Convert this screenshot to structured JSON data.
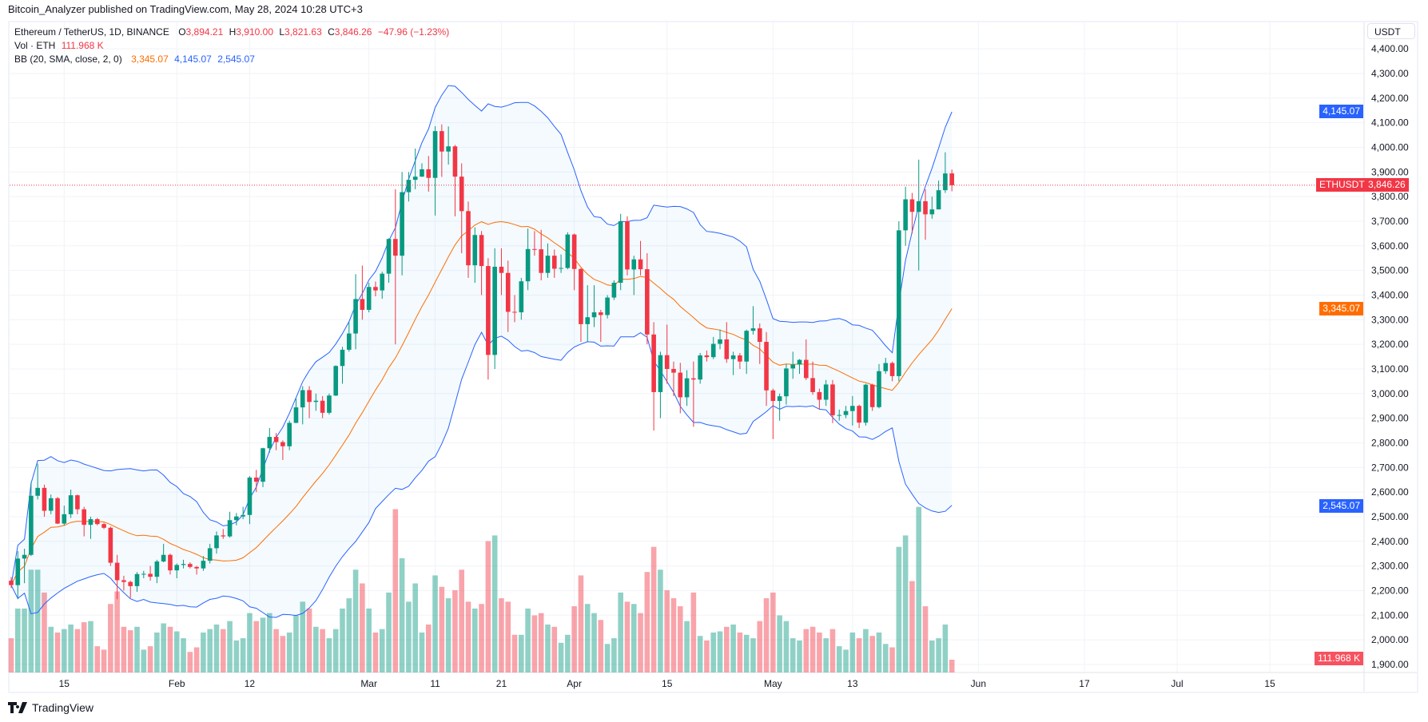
{
  "publish_note": "Bitcoin_Analyzer published on TradingView.com, May 28, 2024 10:28 UTC+3",
  "legend": {
    "symbol": "Ethereum / TetherUS, 1D, BINANCE",
    "o_label": "O",
    "o": "3,894.21",
    "h_label": "H",
    "h": "3,910.00",
    "l_label": "L",
    "l": "3,821.63",
    "c_label": "C",
    "c": "3,846.26",
    "change": "−47.96 (−1.23%)",
    "vol_label": "Vol · ETH",
    "vol": "111.968 K",
    "bb_label": "BB (20, SMA, close, 2, 0)",
    "bb_basis": "3,345.07",
    "bb_upper": "4,145.07",
    "bb_lower": "2,545.07"
  },
  "currency_button": "USDT",
  "badges": {
    "symbol": "ETHUSDT",
    "last": "3,846.26",
    "last_value": 3846.26,
    "upper": "4,145.07",
    "upper_value": 4145.07,
    "basis": "3,345.07",
    "basis_value": 3345.07,
    "lower": "2,545.07",
    "lower_value": 2545.07,
    "volume": "111.968 K"
  },
  "footer_brand": "TradingView",
  "colors": {
    "up": "#089981",
    "down": "#f23645",
    "bb_basis": "#ff6d00",
    "bb_band": "#2962ff",
    "grid": "#f0f3fa"
  },
  "chart_data": {
    "type": "candlestick",
    "start_date": "2024-01-07",
    "price_axis": {
      "min": 1900,
      "max": 4400,
      "ticks": [
        "4,400.00",
        "4,300.00",
        "4,200.00",
        "4,100.00",
        "4,000.00",
        "3,900.00",
        "3,800.00",
        "3,700.00",
        "3,600.00",
        "3,500.00",
        "3,400.00",
        "3,300.00",
        "3,200.00",
        "3,100.00",
        "3,000.00",
        "2,900.00",
        "2,800.00",
        "2,700.00",
        "2,600.00",
        "2,500.00",
        "2,400.00",
        "2,300.00",
        "2,200.00",
        "2,100.00",
        "2,000.00",
        "1,900.00"
      ]
    },
    "time_axis": [
      {
        "label": "15",
        "date": "2024-01-15"
      },
      {
        "label": "Feb",
        "date": "2024-02-01"
      },
      {
        "label": "12",
        "date": "2024-02-12"
      },
      {
        "label": "Mar",
        "date": "2024-03-01"
      },
      {
        "label": "11",
        "date": "2024-03-11"
      },
      {
        "label": "21",
        "date": "2024-03-21"
      },
      {
        "label": "Apr",
        "date": "2024-04-01"
      },
      {
        "label": "15",
        "date": "2024-04-15"
      },
      {
        "label": "May",
        "date": "2024-05-01"
      },
      {
        "label": "13",
        "date": "2024-05-13"
      },
      {
        "label": "Jun",
        "date": "2024-06-01"
      },
      {
        "label": "17",
        "date": "2024-06-17"
      },
      {
        "label": "Jul",
        "date": "2024-07-01"
      },
      {
        "label": "15",
        "date": "2024-07-15"
      }
    ],
    "bollinger": {
      "length": 20,
      "mult": 2
    },
    "ohlcv_fields": [
      "open",
      "high",
      "low",
      "close",
      "volume_k"
    ],
    "ohlcv": [
      [
        2240,
        2255,
        2210,
        2222,
        300
      ],
      [
        2222,
        2360,
        2165,
        2330,
        560
      ],
      [
        2330,
        2370,
        2230,
        2345,
        560
      ],
      [
        2345,
        2640,
        2340,
        2585,
        900
      ],
      [
        2585,
        2715,
        2570,
        2617,
        900
      ],
      [
        2617,
        2630,
        2500,
        2524,
        700
      ],
      [
        2524,
        2590,
        2510,
        2575,
        400
      ],
      [
        2575,
        2580,
        2470,
        2472,
        350
      ],
      [
        2472,
        2545,
        2465,
        2510,
        380
      ],
      [
        2510,
        2610,
        2495,
        2587,
        420
      ],
      [
        2587,
        2590,
        2510,
        2530,
        380
      ],
      [
        2530,
        2540,
        2420,
        2467,
        440
      ],
      [
        2467,
        2500,
        2410,
        2490,
        450
      ],
      [
        2490,
        2495,
        2465,
        2470,
        230
      ],
      [
        2470,
        2475,
        2450,
        2455,
        200
      ],
      [
        2455,
        2460,
        2300,
        2313,
        600
      ],
      [
        2313,
        2345,
        2165,
        2242,
        710
      ],
      [
        2242,
        2260,
        2200,
        2235,
        400
      ],
      [
        2235,
        2240,
        2170,
        2218,
        370
      ],
      [
        2218,
        2275,
        2195,
        2267,
        400
      ],
      [
        2267,
        2280,
        2250,
        2268,
        200
      ],
      [
        2268,
        2300,
        2240,
        2256,
        230
      ],
      [
        2256,
        2325,
        2230,
        2318,
        350
      ],
      [
        2318,
        2390,
        2315,
        2345,
        430
      ],
      [
        2345,
        2350,
        2265,
        2282,
        400
      ],
      [
        2282,
        2310,
        2250,
        2304,
        360
      ],
      [
        2304,
        2325,
        2290,
        2308,
        300
      ],
      [
        2308,
        2315,
        2290,
        2296,
        180
      ],
      [
        2296,
        2300,
        2265,
        2290,
        220
      ],
      [
        2290,
        2340,
        2280,
        2321,
        350
      ],
      [
        2321,
        2390,
        2310,
        2372,
        380
      ],
      [
        2372,
        2440,
        2350,
        2424,
        420
      ],
      [
        2424,
        2450,
        2410,
        2420,
        380
      ],
      [
        2420,
        2520,
        2415,
        2486,
        450
      ],
      [
        2486,
        2515,
        2465,
        2501,
        280
      ],
      [
        2501,
        2540,
        2490,
        2507,
        300
      ],
      [
        2507,
        2665,
        2470,
        2659,
        520
      ],
      [
        2659,
        2690,
        2600,
        2642,
        450
      ],
      [
        2642,
        2780,
        2620,
        2778,
        480
      ],
      [
        2778,
        2860,
        2760,
        2824,
        520
      ],
      [
        2824,
        2840,
        2770,
        2803,
        380
      ],
      [
        2803,
        2810,
        2730,
        2786,
        320
      ],
      [
        2786,
        2890,
        2770,
        2881,
        350
      ],
      [
        2881,
        2980,
        2880,
        2944,
        500
      ],
      [
        2944,
        3030,
        2875,
        3014,
        620
      ],
      [
        3014,
        3030,
        2900,
        2966,
        560
      ],
      [
        2966,
        3000,
        2930,
        2971,
        400
      ],
      [
        2971,
        2990,
        2900,
        2922,
        380
      ],
      [
        2922,
        3000,
        2915,
        2992,
        300
      ],
      [
        2992,
        3115,
        2990,
        3112,
        380
      ],
      [
        3112,
        3190,
        3040,
        3178,
        560
      ],
      [
        3178,
        3290,
        3170,
        3244,
        650
      ],
      [
        3244,
        3485,
        3180,
        3384,
        900
      ],
      [
        3384,
        3520,
        3300,
        3340,
        780
      ],
      [
        3340,
        3450,
        3330,
        3433,
        560
      ],
      [
        3433,
        3455,
        3395,
        3419,
        350
      ],
      [
        3419,
        3495,
        3385,
        3487,
        380
      ],
      [
        3487,
        3630,
        3450,
        3628,
        700
      ],
      [
        3628,
        3830,
        3200,
        3560,
        1430
      ],
      [
        3560,
        3900,
        3480,
        3818,
        1000
      ],
      [
        3818,
        3900,
        3780,
        3868,
        620
      ],
      [
        3868,
        3995,
        3830,
        3881,
        780
      ],
      [
        3881,
        3935,
        3880,
        3911,
        350
      ],
      [
        3911,
        3965,
        3820,
        3876,
        420
      ],
      [
        3876,
        4086,
        3723,
        4066,
        850
      ],
      [
        4066,
        4093,
        3880,
        3983,
        750
      ],
      [
        3983,
        4085,
        3930,
        4004,
        650
      ],
      [
        4004,
        4010,
        3720,
        3881,
        720
      ],
      [
        3881,
        3935,
        3570,
        3741,
        900
      ],
      [
        3741,
        3780,
        3470,
        3521,
        620
      ],
      [
        3521,
        3675,
        3450,
        3644,
        560
      ],
      [
        3644,
        3660,
        3400,
        3518,
        600
      ],
      [
        3518,
        3550,
        3057,
        3157,
        1150
      ],
      [
        3157,
        3590,
        3100,
        3515,
        1200
      ],
      [
        3515,
        3590,
        3400,
        3490,
        650
      ],
      [
        3490,
        3540,
        3250,
        3332,
        620
      ],
      [
        3332,
        3400,
        3290,
        3330,
        330
      ],
      [
        3330,
        3470,
        3300,
        3456,
        330
      ],
      [
        3456,
        3670,
        3420,
        3587,
        560
      ],
      [
        3587,
        3660,
        3560,
        3586,
        500
      ],
      [
        3586,
        3665,
        3460,
        3490,
        520
      ],
      [
        3490,
        3610,
        3470,
        3560,
        420
      ],
      [
        3560,
        3585,
        3470,
        3507,
        400
      ],
      [
        3507,
        3565,
        3490,
        3510,
        260
      ],
      [
        3510,
        3655,
        3505,
        3646,
        330
      ],
      [
        3646,
        3650,
        3420,
        3506,
        580
      ],
      [
        3506,
        3510,
        3210,
        3282,
        850
      ],
      [
        3282,
        3440,
        3210,
        3310,
        600
      ],
      [
        3310,
        3440,
        3270,
        3330,
        520
      ],
      [
        3330,
        3340,
        3210,
        3319,
        460
      ],
      [
        3319,
        3400,
        3305,
        3390,
        250
      ],
      [
        3390,
        3460,
        3380,
        3450,
        300
      ],
      [
        3450,
        3730,
        3420,
        3700,
        700
      ],
      [
        3700,
        3720,
        3480,
        3504,
        620
      ],
      [
        3504,
        3560,
        3400,
        3545,
        600
      ],
      [
        3545,
        3620,
        3480,
        3505,
        520
      ],
      [
        3505,
        3570,
        3200,
        3240,
        880
      ],
      [
        3240,
        3290,
        2850,
        3006,
        1100
      ],
      [
        3006,
        3170,
        2900,
        3156,
        900
      ],
      [
        3156,
        3280,
        3040,
        3100,
        720
      ],
      [
        3100,
        3130,
        2990,
        3085,
        650
      ],
      [
        3085,
        3125,
        2920,
        2985,
        580
      ],
      [
        2985,
        3095,
        2950,
        3062,
        450
      ],
      [
        3062,
        3130,
        2865,
        3057,
        700
      ],
      [
        3057,
        3165,
        3040,
        3155,
        320
      ],
      [
        3155,
        3175,
        3130,
        3148,
        280
      ],
      [
        3148,
        3230,
        3140,
        3202,
        350
      ],
      [
        3202,
        3260,
        3180,
        3220,
        360
      ],
      [
        3220,
        3290,
        3125,
        3140,
        400
      ],
      [
        3140,
        3170,
        3075,
        3155,
        420
      ],
      [
        3155,
        3165,
        3100,
        3130,
        350
      ],
      [
        3130,
        3260,
        3080,
        3255,
        330
      ],
      [
        3255,
        3355,
        3240,
        3265,
        300
      ],
      [
        3265,
        3285,
        3120,
        3210,
        450
      ],
      [
        3210,
        3250,
        2950,
        3013,
        650
      ],
      [
        3013,
        3020,
        2815,
        2970,
        700
      ],
      [
        2970,
        3000,
        2890,
        2989,
        500
      ],
      [
        2989,
        3120,
        2955,
        3102,
        450
      ],
      [
        3102,
        3170,
        3060,
        3118,
        300
      ],
      [
        3118,
        3140,
        3080,
        3137,
        280
      ],
      [
        3137,
        3220,
        3055,
        3063,
        380
      ],
      [
        3063,
        3130,
        2995,
        3006,
        400
      ],
      [
        3006,
        3020,
        2935,
        2975,
        350
      ],
      [
        2975,
        3055,
        2950,
        3037,
        300
      ],
      [
        3037,
        3055,
        2880,
        2912,
        380
      ],
      [
        2912,
        2935,
        2890,
        2913,
        230
      ],
      [
        2913,
        2950,
        2900,
        2929,
        200
      ],
      [
        2929,
        2990,
        2870,
        2950,
        350
      ],
      [
        2950,
        2955,
        2860,
        2882,
        300
      ],
      [
        2882,
        3040,
        2870,
        3036,
        380
      ],
      [
        3036,
        3040,
        2930,
        2945,
        320
      ],
      [
        2945,
        3120,
        2940,
        3091,
        350
      ],
      [
        3091,
        3145,
        3080,
        3124,
        250
      ],
      [
        3124,
        3130,
        3050,
        3071,
        220
      ],
      [
        3071,
        3700,
        3050,
        3663,
        1100
      ],
      [
        3663,
        3840,
        3600,
        3789,
        1200
      ],
      [
        3789,
        3815,
        3650,
        3738,
        800
      ],
      [
        3738,
        3950,
        3500,
        3781,
        1450
      ],
      [
        3781,
        3830,
        3625,
        3728,
        580
      ],
      [
        3728,
        3800,
        3710,
        3748,
        280
      ],
      [
        3748,
        3865,
        3750,
        3826,
        300
      ],
      [
        3826,
        3980,
        3815,
        3894,
        420
      ],
      [
        3894.21,
        3910,
        3821.63,
        3846.26,
        111.968
      ]
    ]
  }
}
